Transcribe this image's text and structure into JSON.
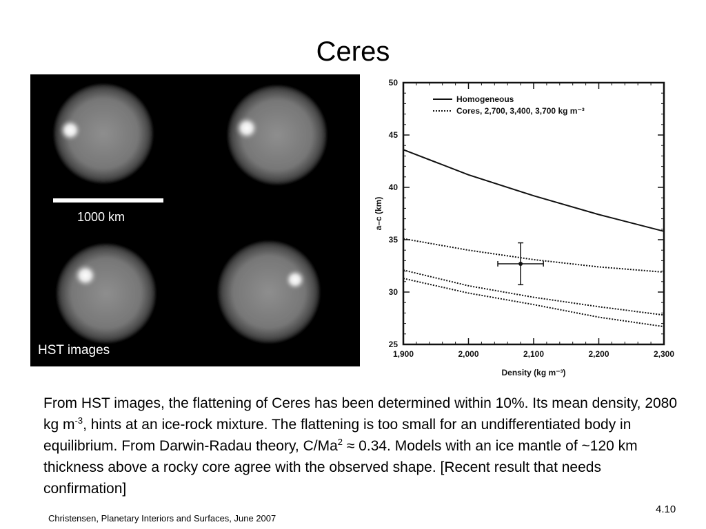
{
  "slide": {
    "title": "Ceres",
    "image_panel": {
      "scale_label": "1000 km",
      "caption": "HST images"
    },
    "body": {
      "p1": "From HST images, the flattening of Ceres has been determined within 10%. Its mean density, 2080 kg m",
      "sup1": "-3",
      "p2": ", hints at an ice-rock mixture. The flattening is too small for an undifferentiated body in equilibrium. From Darwin-Radau theory, C/Ma",
      "sup2": "2",
      "p3": " ≈ 0.34. Models with an ice mantle of ~120 km thickness above a rocky core agree with the observed shape. [Recent result that needs confirmation]"
    },
    "footer": "Christensen, Planetary Interiors and Surfaces, June 2007",
    "page_number": "4.10"
  },
  "chart_data": {
    "type": "line",
    "xlabel": "Density (kg m⁻³)",
    "ylabel": "a–c (km)",
    "xlim": [
      1900,
      2300
    ],
    "ylim": [
      25,
      50
    ],
    "xticks": [
      1900,
      2000,
      2100,
      2200,
      2300
    ],
    "xtick_labels": [
      "1,900",
      "2,000",
      "2,100",
      "2,200",
      "2,300"
    ],
    "yticks": [
      25,
      30,
      35,
      40,
      45,
      50
    ],
    "ytick_labels": [
      "25",
      "30",
      "35",
      "40",
      "45",
      "50"
    ],
    "legend_position": "top",
    "legend": [
      {
        "label": "Homogeneous",
        "style": "solid"
      },
      {
        "label": "Cores, 2,700, 3,400, 3,700 kg m⁻³",
        "style": "dotted"
      }
    ],
    "series": [
      {
        "style": "solid",
        "x": [
          1900,
          2000,
          2100,
          2200,
          2300
        ],
        "y": [
          43.6,
          41.2,
          39.2,
          37.4,
          35.8
        ]
      },
      {
        "style": "dotted",
        "x": [
          1900,
          2000,
          2100,
          2200,
          2300
        ],
        "y": [
          35.1,
          34.0,
          33.1,
          32.4,
          31.9
        ]
      },
      {
        "style": "dotted",
        "x": [
          1900,
          2000,
          2100,
          2200,
          2300
        ],
        "y": [
          32.1,
          30.6,
          29.5,
          28.6,
          27.8
        ]
      },
      {
        "style": "dotted",
        "x": [
          1900,
          2000,
          2100,
          2200,
          2300
        ],
        "y": [
          31.3,
          29.9,
          28.8,
          27.6,
          26.7
        ]
      }
    ],
    "measurement": {
      "x": 2080,
      "y": 32.7,
      "x_err": 35,
      "y_err": 2.0
    }
  }
}
